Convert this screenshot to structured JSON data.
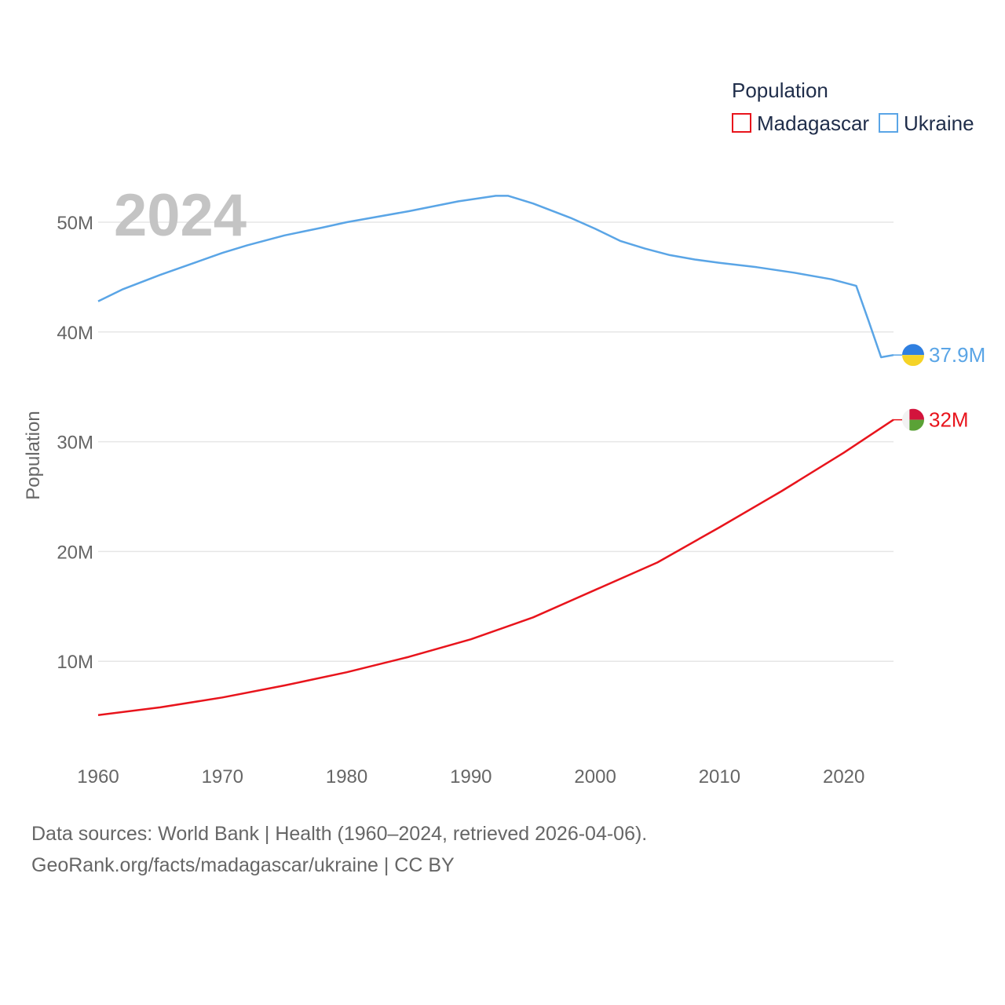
{
  "chart_data": {
    "type": "line",
    "year_label": "2024",
    "ylabel": "Population",
    "xlabel": "",
    "xlim": [
      1960,
      2024
    ],
    "ylim": [
      0,
      56000000
    ],
    "x_ticks": [
      1960,
      1970,
      1980,
      1990,
      2000,
      2010,
      2020
    ],
    "y_ticks": [
      10000000,
      20000000,
      30000000,
      40000000,
      50000000
    ],
    "y_tick_labels": [
      "10M",
      "20M",
      "30M",
      "40M",
      "50M"
    ],
    "grid": true,
    "legend": {
      "title": "Population",
      "position": "top-right",
      "entries": [
        "Madagascar",
        "Ukraine"
      ]
    },
    "series": [
      {
        "name": "Madagascar",
        "color": "#e8141c",
        "end_label": "32M",
        "flag": "madagascar-flag",
        "points": [
          [
            1960,
            5.1
          ],
          [
            1965,
            5.8
          ],
          [
            1970,
            6.7
          ],
          [
            1975,
            7.8
          ],
          [
            1980,
            9.0
          ],
          [
            1985,
            10.4
          ],
          [
            1990,
            12.0
          ],
          [
            1995,
            14.0
          ],
          [
            2000,
            16.5
          ],
          [
            2005,
            19.0
          ],
          [
            2010,
            22.2
          ],
          [
            2015,
            25.5
          ],
          [
            2020,
            29.0
          ],
          [
            2024,
            32.0
          ]
        ]
      },
      {
        "name": "Ukraine",
        "color": "#5aa5e6",
        "end_label": "37.9M",
        "flag": "ukraine-flag",
        "points": [
          [
            1960,
            42.8
          ],
          [
            1962,
            43.9
          ],
          [
            1965,
            45.2
          ],
          [
            1968,
            46.4
          ],
          [
            1970,
            47.2
          ],
          [
            1972,
            47.9
          ],
          [
            1975,
            48.8
          ],
          [
            1978,
            49.5
          ],
          [
            1980,
            50.0
          ],
          [
            1985,
            51.0
          ],
          [
            1989,
            51.9
          ],
          [
            1992,
            52.4
          ],
          [
            1993,
            52.4
          ],
          [
            1995,
            51.7
          ],
          [
            1998,
            50.4
          ],
          [
            2000,
            49.4
          ],
          [
            2002,
            48.3
          ],
          [
            2004,
            47.6
          ],
          [
            2006,
            47.0
          ],
          [
            2008,
            46.6
          ],
          [
            2010,
            46.3
          ],
          [
            2013,
            45.9
          ],
          [
            2016,
            45.4
          ],
          [
            2019,
            44.8
          ],
          [
            2021,
            44.2
          ],
          [
            2022,
            41.0
          ],
          [
            2023,
            37.7
          ],
          [
            2024,
            37.9
          ]
        ]
      }
    ]
  },
  "source": {
    "line1": "Data sources: World Bank | Health (1960–2024, retrieved 2026-04-06).",
    "line2": "GeoRank.org/facts/madagascar/ukraine | CC BY"
  }
}
